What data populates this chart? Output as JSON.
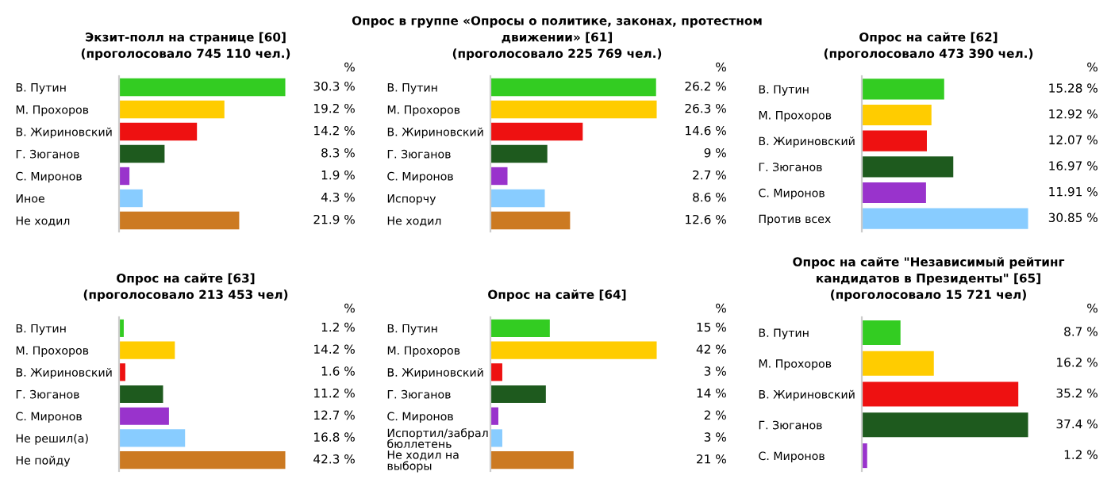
{
  "chart_data": [
    {
      "type": "bar",
      "orientation": "horizontal",
      "title": "Экзит-полл на странице [60]",
      "subtitle": "(проголосовало 745 110 чел.)",
      "annotations": [
        "%"
      ],
      "categories": [
        "В. Путин",
        "М. Прохоров",
        "В. Жириновский",
        "Г. Зюганов",
        "С. Миронов",
        "Иное",
        "Не ходил"
      ],
      "values": [
        30.3,
        19.2,
        14.2,
        8.3,
        1.9,
        4.3,
        21.9
      ],
      "value_labels": [
        "30.3 %",
        "19.2 %",
        "14.2 %",
        "8.3 %",
        "1.9 %",
        "4.3 %",
        "21.9 %"
      ],
      "colors": [
        "#33cc22",
        "#ffcc00",
        "#ee1111",
        "#1e5a1e",
        "#9933cc",
        "#88ccff",
        "#cc7a22"
      ]
    },
    {
      "type": "bar",
      "orientation": "horizontal",
      "title": "Опрос в группе «Опросы о политике, законах, протестном\nдвижении» [61]",
      "subtitle": "(проголосовало 225 769 чел.)",
      "annotations": [
        "%"
      ],
      "categories": [
        "В. Путин",
        "М. Прохоров",
        "В. Жириновский",
        "Г. Зюганов",
        "С. Миронов",
        "Испорчу",
        "Не ходил"
      ],
      "values": [
        26.2,
        26.3,
        14.6,
        9,
        2.7,
        8.6,
        12.6
      ],
      "value_labels": [
        "26.2 %",
        "26.3 %",
        "14.6 %",
        "9 %",
        "2.7 %",
        "8.6 %",
        "12.6 %"
      ],
      "colors": [
        "#33cc22",
        "#ffcc00",
        "#ee1111",
        "#1e5a1e",
        "#9933cc",
        "#88ccff",
        "#cc7a22"
      ]
    },
    {
      "type": "bar",
      "orientation": "horizontal",
      "title": "Опрос на сайте [62]",
      "subtitle": "(проголосовало 473 390 чел.)",
      "annotations": [
        "%"
      ],
      "categories": [
        "В. Путин",
        "М. Прохоров",
        "В. Жириновский",
        "Г. Зюганов",
        "С. Миронов",
        "Против всех"
      ],
      "values": [
        15.28,
        12.92,
        12.07,
        16.97,
        11.91,
        30.85
      ],
      "value_labels": [
        "15.28 %",
        "12.92 %",
        "12.07 %",
        "16.97 %",
        "11.91 %",
        "30.85 %"
      ],
      "colors": [
        "#33cc22",
        "#ffcc00",
        "#ee1111",
        "#1e5a1e",
        "#9933cc",
        "#88ccff"
      ]
    },
    {
      "type": "bar",
      "orientation": "horizontal",
      "title": "Опрос на сайте [63]",
      "subtitle": "(проголосовало 213 453 чел)",
      "annotations": [
        "%"
      ],
      "categories": [
        "В. Путин",
        "М. Прохоров",
        "В. Жириновский",
        "Г. Зюганов",
        "С. Миронов",
        "Не решил(а)",
        "Не пойду"
      ],
      "values": [
        1.2,
        14.2,
        1.6,
        11.2,
        12.7,
        16.8,
        42.3
      ],
      "value_labels": [
        "1.2 %",
        "14.2 %",
        "1.6 %",
        "11.2 %",
        "12.7 %",
        "16.8 %",
        "42.3 %"
      ],
      "colors": [
        "#33cc22",
        "#ffcc00",
        "#ee1111",
        "#1e5a1e",
        "#9933cc",
        "#88ccff",
        "#cc7a22"
      ]
    },
    {
      "type": "bar",
      "orientation": "horizontal",
      "title": "Опрос на сайте [64]",
      "annotations": [
        "%"
      ],
      "categories": [
        "В. Путин",
        "М. Прохоров",
        "В. Жириновский",
        "Г. Зюганов",
        "С. Миронов",
        "Испортил/забрал\nбюллетень",
        "Не ходил на\nвыборы"
      ],
      "values": [
        15,
        42,
        3,
        14,
        2,
        3,
        21
      ],
      "value_labels": [
        "15 %",
        "42 %",
        "3 %",
        "14 %",
        "2 %",
        "3 %",
        "21 %"
      ],
      "colors": [
        "#33cc22",
        "#ffcc00",
        "#ee1111",
        "#1e5a1e",
        "#9933cc",
        "#88ccff",
        "#cc7a22"
      ]
    },
    {
      "type": "bar",
      "orientation": "horizontal",
      "title": "Опрос на сайте \"Независимый рейтинг\nкандидатов в Президенты\" [65]",
      "subtitle": "(проголосовало 15 721 чел)",
      "annotations": [
        "%"
      ],
      "categories": [
        "В. Путин",
        "М. Прохоров",
        "В. Жириновский",
        "Г. Зюганов",
        "С. Миронов"
      ],
      "values": [
        8.7,
        16.2,
        35.2,
        37.4,
        1.2
      ],
      "value_labels": [
        "8.7 %",
        "16.2 %",
        "35.2 %",
        "37.4 %",
        "1.2 %"
      ],
      "colors": [
        "#33cc22",
        "#ffcc00",
        "#ee1111",
        "#1e5a1e",
        "#9933cc"
      ]
    }
  ]
}
